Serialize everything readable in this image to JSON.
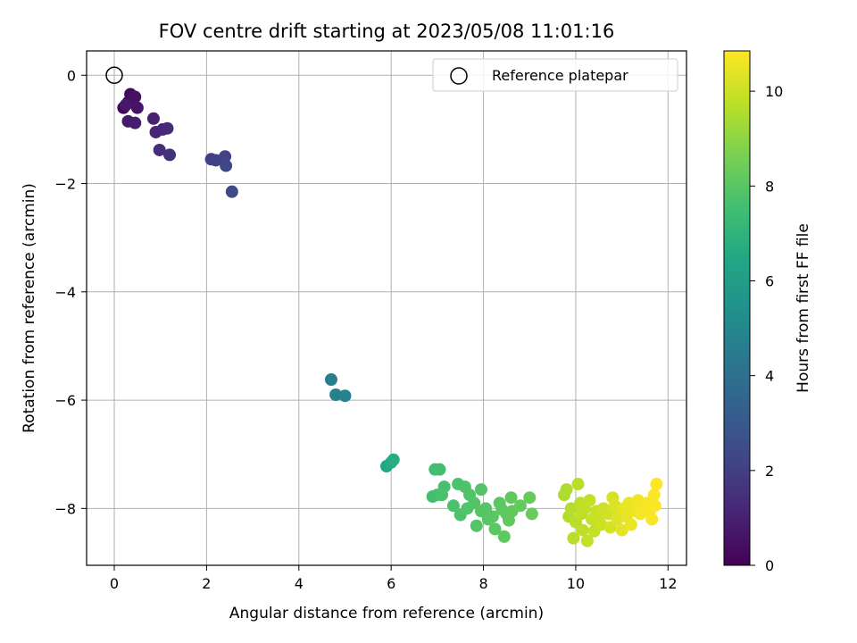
{
  "chart_data": {
    "type": "scatter",
    "title": "FOV centre drift starting at 2023/05/08 11:01:16",
    "xlabel": "Angular distance from reference (arcmin)",
    "ylabel": "Rotation from reference (arcmin)",
    "xlim": [
      -0.6,
      12.4
    ],
    "ylim": [
      -9.05,
      0.45
    ],
    "xticks": [
      0,
      2,
      4,
      6,
      8,
      10,
      12
    ],
    "yticks": [
      0,
      -2,
      -4,
      -6,
      -8
    ],
    "xtick_labels": [
      "0",
      "2",
      "4",
      "6",
      "8",
      "10",
      "12"
    ],
    "ytick_labels": [
      "0",
      "−2",
      "−4",
      "−6",
      "−8"
    ],
    "grid": true,
    "legend": {
      "placement": "top-right",
      "entries": [
        "Reference platepar"
      ]
    },
    "colormap": "viridis",
    "colorbar": {
      "label": "Hours from first FF file",
      "range": [
        0,
        10.85
      ],
      "ticks": [
        0,
        2,
        4,
        6,
        8,
        10
      ],
      "tick_labels": [
        "0",
        "2",
        "4",
        "6",
        "8",
        "10"
      ]
    },
    "reference": {
      "name": "Reference platepar",
      "x": 0,
      "y": 0
    },
    "series": [
      {
        "points": [
          [
            0.2,
            -0.6,
            0.1
          ],
          [
            0.3,
            -0.5,
            0.2
          ],
          [
            0.35,
            -0.35,
            0.3
          ],
          [
            0.4,
            -0.45,
            0.4
          ],
          [
            0.45,
            -0.4,
            0.5
          ],
          [
            0.5,
            -0.6,
            0.6
          ],
          [
            0.25,
            -0.55,
            0.7
          ],
          [
            0.3,
            -0.85,
            0.8
          ],
          [
            0.45,
            -0.88,
            0.9
          ],
          [
            0.85,
            -0.8,
            1.0
          ],
          [
            0.9,
            -1.05,
            1.1
          ],
          [
            1.05,
            -1.0,
            1.2
          ],
          [
            1.15,
            -0.98,
            1.3
          ],
          [
            0.98,
            -1.38,
            1.4
          ],
          [
            1.2,
            -1.47,
            1.5
          ],
          [
            2.1,
            -1.55,
            2.0
          ],
          [
            2.2,
            -1.57,
            2.1
          ],
          [
            2.4,
            -1.5,
            2.2
          ],
          [
            2.42,
            -1.67,
            2.3
          ],
          [
            2.55,
            -2.15,
            2.4
          ],
          [
            4.7,
            -5.62,
            4.6
          ],
          [
            4.8,
            -5.9,
            4.7
          ],
          [
            5.0,
            -5.92,
            4.8
          ],
          [
            5.9,
            -7.22,
            6.5
          ],
          [
            6.0,
            -7.15,
            6.6
          ],
          [
            6.05,
            -7.1,
            6.7
          ],
          [
            6.95,
            -7.28,
            7.5
          ],
          [
            7.05,
            -7.28,
            7.55
          ],
          [
            6.9,
            -7.78,
            7.6
          ],
          [
            7.0,
            -7.75,
            7.62
          ],
          [
            7.15,
            -7.6,
            7.65
          ],
          [
            7.1,
            -7.75,
            7.7
          ],
          [
            7.35,
            -7.95,
            7.72
          ],
          [
            7.45,
            -7.55,
            7.75
          ],
          [
            7.6,
            -7.6,
            7.78
          ],
          [
            7.5,
            -8.12,
            7.8
          ],
          [
            7.7,
            -7.75,
            7.82
          ],
          [
            7.65,
            -8.0,
            7.85
          ],
          [
            7.8,
            -7.9,
            7.88
          ],
          [
            7.85,
            -8.32,
            7.9
          ],
          [
            7.95,
            -7.65,
            7.92
          ],
          [
            7.95,
            -8.05,
            7.95
          ],
          [
            8.05,
            -8.0,
            7.98
          ],
          [
            8.1,
            -8.2,
            8.0
          ],
          [
            8.2,
            -8.15,
            8.02
          ],
          [
            8.25,
            -8.38,
            8.05
          ],
          [
            8.35,
            -7.9,
            8.08
          ],
          [
            8.4,
            -8.02,
            8.1
          ],
          [
            8.45,
            -8.52,
            8.12
          ],
          [
            8.5,
            -8.1,
            8.15
          ],
          [
            8.55,
            -8.22,
            8.18
          ],
          [
            8.6,
            -7.8,
            8.2
          ],
          [
            8.62,
            -8.05,
            8.22
          ],
          [
            8.8,
            -7.95,
            8.25
          ],
          [
            9.0,
            -7.8,
            8.28
          ],
          [
            9.05,
            -8.1,
            8.3
          ],
          [
            9.75,
            -7.75,
            9.5
          ],
          [
            9.8,
            -7.65,
            9.55
          ],
          [
            9.85,
            -8.15,
            9.6
          ],
          [
            9.9,
            -8.0,
            9.62
          ],
          [
            9.95,
            -8.55,
            9.65
          ],
          [
            10.0,
            -8.25,
            9.7
          ],
          [
            10.05,
            -7.55,
            9.72
          ],
          [
            10.1,
            -7.9,
            9.75
          ],
          [
            10.12,
            -8.1,
            9.78
          ],
          [
            10.15,
            -8.4,
            9.8
          ],
          [
            10.2,
            -8.0,
            9.82
          ],
          [
            10.25,
            -8.6,
            9.85
          ],
          [
            10.3,
            -7.85,
            9.88
          ],
          [
            10.35,
            -8.2,
            9.9
          ],
          [
            10.4,
            -8.42,
            9.92
          ],
          [
            10.45,
            -8.05,
            9.95
          ],
          [
            10.5,
            -8.15,
            9.98
          ],
          [
            10.55,
            -8.3,
            10.0
          ],
          [
            10.6,
            -8.0,
            10.05
          ],
          [
            10.7,
            -8.1,
            10.1
          ],
          [
            10.75,
            -8.35,
            10.15
          ],
          [
            10.8,
            -7.8,
            10.2
          ],
          [
            10.85,
            -7.95,
            10.25
          ],
          [
            10.9,
            -8.2,
            10.3
          ],
          [
            10.95,
            -8.05,
            10.35
          ],
          [
            11.0,
            -8.4,
            10.4
          ],
          [
            11.05,
            -8.0,
            10.45
          ],
          [
            11.1,
            -8.15,
            10.5
          ],
          [
            11.15,
            -7.9,
            10.55
          ],
          [
            11.2,
            -8.3,
            10.6
          ],
          [
            11.3,
            -8.05,
            10.62
          ],
          [
            11.35,
            -7.85,
            10.65
          ],
          [
            11.4,
            -8.1,
            10.68
          ],
          [
            11.5,
            -8.0,
            10.7
          ],
          [
            11.55,
            -7.9,
            10.72
          ],
          [
            11.6,
            -8.05,
            10.75
          ],
          [
            11.65,
            -8.2,
            10.78
          ],
          [
            11.7,
            -7.75,
            10.8
          ],
          [
            11.72,
            -7.95,
            10.82
          ],
          [
            11.75,
            -7.55,
            10.85
          ]
        ]
      }
    ]
  }
}
